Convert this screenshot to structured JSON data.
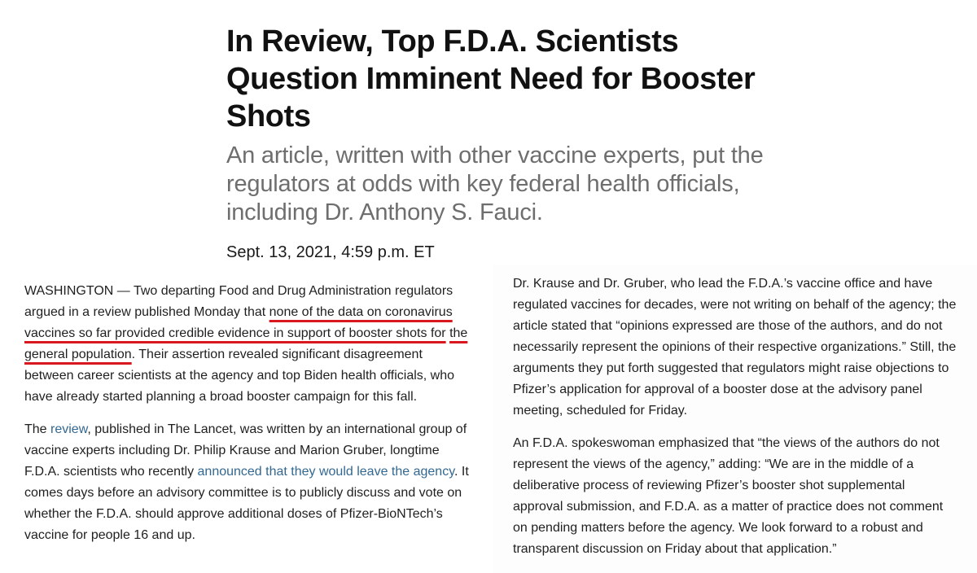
{
  "article": {
    "headline": "In Review, Top F.D.A. Scientists Question Imminent Need for Booster Shots",
    "summary": "An article, written with other vaccine experts, put the regulators at odds with key federal health officials, including Dr. Anthony S. Fauci.",
    "date": "Sept. 13, 2021, 4:59 p.m. ET"
  },
  "left_column": {
    "p1": {
      "before": "WASHINGTON — Two departing Food and Drug Administration regulators argued in a review published Monday that ",
      "highlight_1": "none of the data on coronavirus",
      "highlight_mid": " ",
      "highlight_2": "vaccines so far provided credible evidence in support of booster shots for",
      "highlight_mid2": " ",
      "highlight_3": "the general population",
      "after": ". Their assertion revealed significant disagreement between career scientists at the agency and top Biden health officials, who have already started planning a broad booster campaign for this fall."
    },
    "p2": {
      "before": "The ",
      "link_1": "review",
      "middle": ", published in The Lancet, was written by an international group of vaccine experts including Dr. Philip Krause and Marion Gruber, longtime F.D.A. scientists who recently ",
      "link_2": "announced that they would leave the agency",
      "after": ". It comes days before an advisory committee is to publicly discuss and vote on whether the F.D.A. should approve additional doses of Pfizer-BioNTech’s vaccine for people 16 and up."
    }
  },
  "right_column": {
    "p1": "Dr. Krause and Dr. Gruber, who lead the F.D.A.’s vaccine office and have regulated vaccines for decades, were not writing on behalf of the agency; the article stated that “opinions expressed are those of the authors, and do not necessarily represent the opinions of their respective organizations.” Still, the arguments they put forth suggested that regulators might raise objections to Pfizer’s application for approval of a booster dose at the advisory panel meeting, scheduled for Friday.",
    "p2": "An F.D.A. spokeswoman emphasized that “the views of the authors do not represent the views of the agency,” adding: “We are in the middle of a deliberative process of reviewing Pfizer’s booster shot supplemental approval submission, and F.D.A. as a matter of practice does not comment on pending matters before the agency. We look forward to a robust and transparent discussion on Friday about that application.”"
  },
  "colors": {
    "highlight_underline": "#d8171f",
    "link": "#326891",
    "summary_text": "#6e6e6e"
  }
}
